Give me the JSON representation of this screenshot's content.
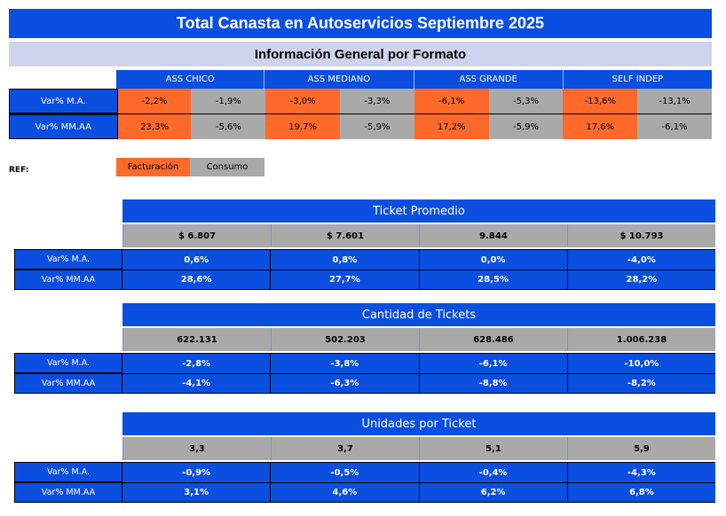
{
  "header": {
    "title": "Total Canasta en Autoservicios Septiembre 2025",
    "subtitle": "Información General por Formato"
  },
  "formats": {
    "headers": [
      "ASS CHICO",
      "ASS MEDIANO",
      "ASS GRANDE",
      "SELF INDEP"
    ],
    "rows": [
      {
        "label": "Var% M.A.",
        "values": [
          "-2,2%",
          "-1,9%",
          "-3,0%",
          "-3,3%",
          "-6,1%",
          "-5,3%",
          "-13,6%",
          "-13,1%"
        ]
      },
      {
        "label": "Var% MM.AA",
        "values": [
          "23,3%",
          "-5,6%",
          "19,7%",
          "-5,9%",
          "17,2%",
          "-5,9%",
          "17,6%",
          "-6,1%"
        ]
      }
    ]
  },
  "ref": {
    "label": "REF:",
    "facturacion": "Facturación",
    "consumo": "Consumo"
  },
  "sections": [
    {
      "title": "Ticket Promedio",
      "values": [
        "$ 6.807",
        "$ 7.601",
        "9.844",
        "$ 10.793"
      ],
      "rows": [
        {
          "label": "Var% M.A.",
          "values": [
            "0,6%",
            "0,8%",
            "0,0%",
            "-4,0%"
          ]
        },
        {
          "label": "Var% MM.AA",
          "values": [
            "28,6%",
            "27,7%",
            "28,5%",
            "28,2%"
          ]
        }
      ]
    },
    {
      "title": "Cantidad de Tickets",
      "values": [
        "622.131",
        "502.203",
        "628.486",
        "1.006.238"
      ],
      "rows": [
        {
          "label": "Var% M.A.",
          "values": [
            "-2,8%",
            "-3,8%",
            "-6,1%",
            "-10,0%"
          ]
        },
        {
          "label": "Var% MM.AA",
          "values": [
            "-4,1%",
            "-6,3%",
            "-8,8%",
            "-8,2%"
          ]
        }
      ]
    },
    {
      "title": "Unidades por Ticket",
      "values": [
        "3,3",
        "3,7",
        "5,1",
        "5,9"
      ],
      "rows": [
        {
          "label": "Var% M.A.",
          "values": [
            "-0,9%",
            "-0,5%",
            "-0,4%",
            "-4,3%"
          ]
        },
        {
          "label": "Var% MM.AA",
          "values": [
            "3,1%",
            "4,6%",
            "6,2%",
            "6,8%"
          ]
        }
      ]
    }
  ],
  "colors": {
    "blue": "#0a4fe0",
    "lavender": "#cfd3ec",
    "facturacion": "#ff6a2b",
    "consumo": "#a9a9a9"
  }
}
